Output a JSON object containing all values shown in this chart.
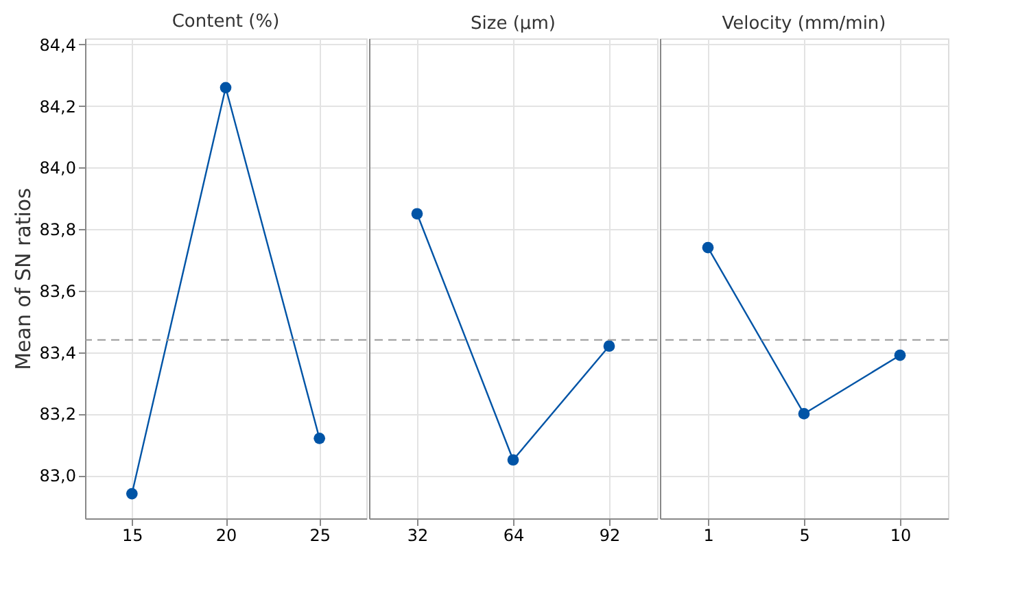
{
  "chart_data": [
    {
      "type": "line",
      "title": "Content (%)",
      "ylabel": "Mean of SN ratios",
      "categories": [
        "15",
        "20",
        "25"
      ],
      "series": [
        {
          "color": "#0054a6",
          "values": [
            82.94,
            84.26,
            83.12
          ]
        }
      ],
      "ylim": [
        82.86,
        84.42
      ],
      "yticks": [
        {
          "value": 83.0,
          "label": "83,0"
        },
        {
          "value": 83.2,
          "label": "83,2"
        },
        {
          "value": 83.4,
          "label": "83,4"
        },
        {
          "value": 83.6,
          "label": "83,6"
        },
        {
          "value": 83.8,
          "label": "83,8"
        },
        {
          "value": 84.0,
          "label": "84,0"
        },
        {
          "value": 84.2,
          "label": "84,2"
        },
        {
          "value": 84.4,
          "label": "84,4"
        }
      ],
      "ref_lines": [
        {
          "axis": "y",
          "value": 83.44,
          "color": "#999999",
          "line_style": "dashed"
        }
      ],
      "grid": true,
      "marker": "circle",
      "line_style": "solid"
    },
    {
      "type": "line",
      "title": "Size (µm)",
      "categories": [
        "32",
        "64",
        "92"
      ],
      "series": [
        {
          "color": "#0054a6",
          "values": [
            83.85,
            83.05,
            83.42
          ]
        }
      ],
      "ylim": [
        82.86,
        84.42
      ],
      "yticks": [
        83.0,
        83.2,
        83.4,
        83.6,
        83.8,
        84.0,
        84.2,
        84.4
      ],
      "ref_lines": [
        {
          "axis": "y",
          "value": 83.44,
          "color": "#999999",
          "line_style": "dashed"
        }
      ],
      "grid": true,
      "marker": "circle",
      "line_style": "solid",
      "tick_labels": "x"
    },
    {
      "type": "line",
      "title": "Velocity (mm/min)",
      "categories": [
        "1",
        "5",
        "10"
      ],
      "series": [
        {
          "color": "#0054a6",
          "values": [
            83.74,
            83.2,
            83.39
          ]
        }
      ],
      "ylim": [
        82.86,
        84.42
      ],
      "yticks": [
        83.0,
        83.2,
        83.4,
        83.6,
        83.8,
        84.0,
        84.2,
        84.4
      ],
      "ref_lines": [
        {
          "axis": "y",
          "value": 83.44,
          "color": "#999999",
          "line_style": "dashed"
        }
      ],
      "grid": true,
      "marker": "circle",
      "line_style": "solid",
      "tick_labels": "x"
    }
  ]
}
